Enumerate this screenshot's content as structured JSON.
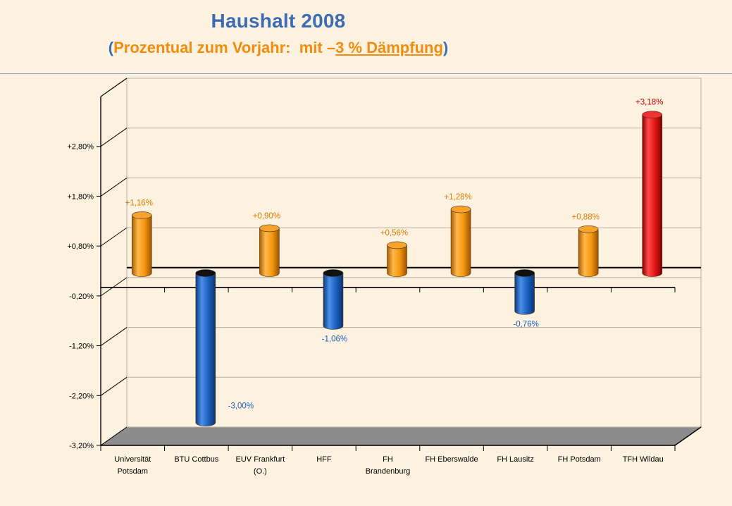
{
  "colors": {
    "background": "#FDF2DF",
    "title": "#3C6DB4",
    "subtitle": "#F28C0F",
    "positive": "#F5960F",
    "negative": "#1A5FBF",
    "highlight": "#E01515",
    "floor": "#8C8C8C",
    "grid": "#555555"
  },
  "chart_data": {
    "type": "bar",
    "title": "Haushalt 2008",
    "subtitle": {
      "open": "(",
      "text": "Prozentual zum Vorjahr:  mit –",
      "underlined": "3 % Dämpfung",
      "close": ")"
    },
    "categories": [
      [
        "Universität",
        "Potsdam"
      ],
      [
        "BTU Cottbus"
      ],
      [
        "EUV Frankfurt",
        "(O.)"
      ],
      [
        "HFF"
      ],
      [
        "FH",
        "Brandenburg"
      ],
      [
        "FH Eberswalde"
      ],
      [
        "FH Lausitz"
      ],
      [
        "FH Potsdam"
      ],
      [
        "TFH Wildau"
      ]
    ],
    "values": [
      1.16,
      -3.0,
      0.9,
      -1.06,
      0.56,
      1.28,
      -0.76,
      0.88,
      3.18
    ],
    "data_labels": [
      "+1,16%",
      "-3,00%",
      "+0,90%",
      "-1,06%",
      "+0,56%",
      "+1,28%",
      "-0,76%",
      "+0,88%",
      "+3,18%"
    ],
    "highlight_index": 8,
    "ylim": [
      -3.2,
      3.8
    ],
    "yticks": [
      2.8,
      1.8,
      0.8,
      -0.2,
      -1.2,
      -2.2,
      -3.2
    ],
    "ytick_labels": [
      "+2,80%",
      "+1,80%",
      "+0,80%",
      "-0,20%",
      "-1,20%",
      "-2,20%",
      "-3,20%"
    ],
    "grid": true,
    "xlabel": "",
    "ylabel": ""
  }
}
